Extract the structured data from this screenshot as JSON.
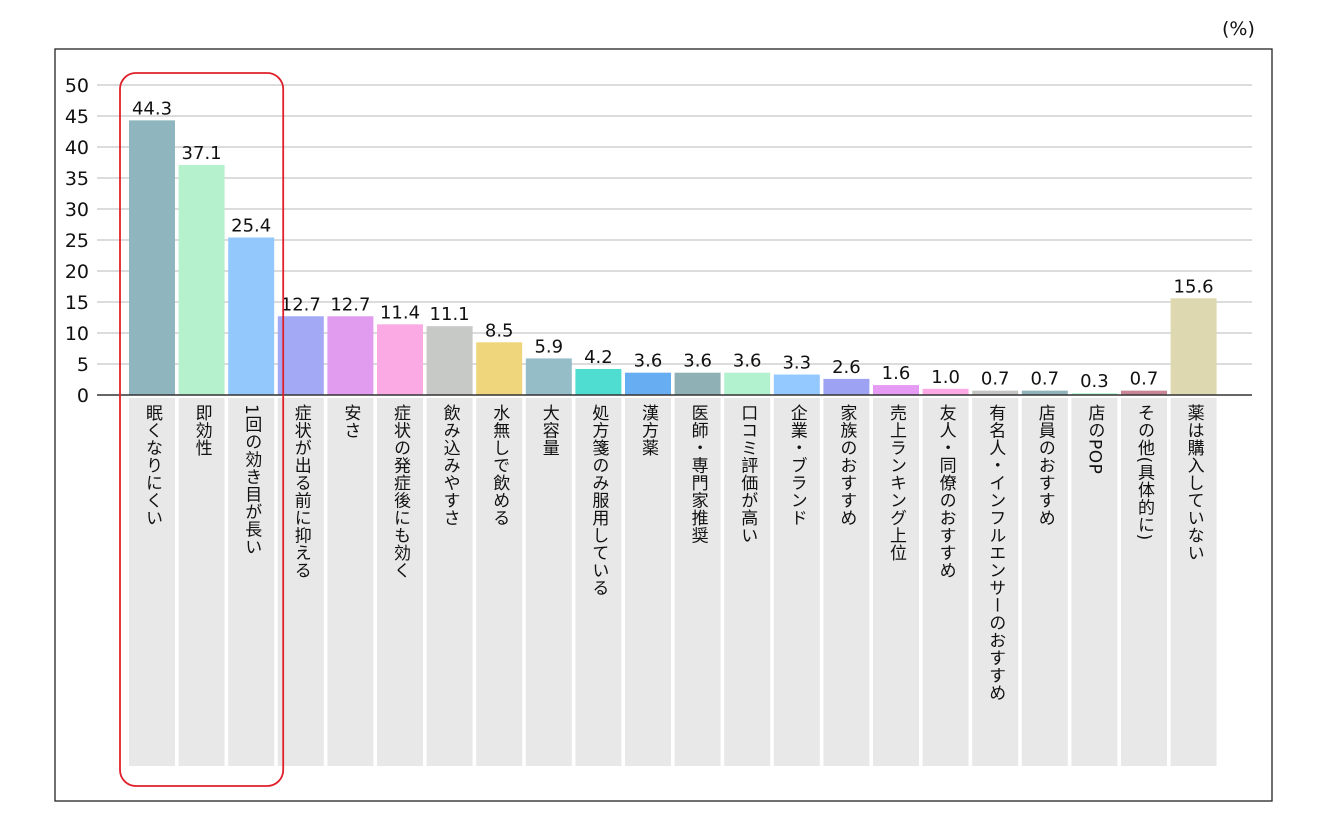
{
  "unit_label": "(%)",
  "chart_data": {
    "type": "bar",
    "title": "",
    "xlabel": "",
    "ylabel": "",
    "ylim": [
      0,
      50
    ],
    "yticks": [
      0,
      5,
      10,
      15,
      20,
      25,
      30,
      35,
      40,
      45,
      50
    ],
    "grid": true,
    "categories": [
      "眠くなりにくい",
      "即効性",
      "1回の効き目が長い",
      "症状が出る前に抑える",
      "安さ",
      "症状の発症後にも効く",
      "飲み込みやすさ",
      "水無しで飲める",
      "大容量",
      "処方箋のみ服用している",
      "漢方薬",
      "医師・専門家推奨",
      "口コミ評価が高い",
      "企業・ブランド",
      "家族のおすすめ",
      "売上ランキング上位",
      "友人・同僚のおすすめ",
      "有名人・インフルエンサーのおすすめ",
      "店員のおすすめ",
      "店のPOP",
      "その他(具体的に)",
      "薬は購入していない"
    ],
    "values": [
      44.3,
      37.1,
      25.4,
      12.7,
      12.7,
      11.4,
      11.1,
      8.5,
      5.9,
      4.2,
      3.6,
      3.6,
      3.6,
      3.3,
      2.6,
      1.6,
      1.0,
      0.7,
      0.7,
      0.3,
      0.7,
      15.6
    ],
    "value_labels": [
      "44.3",
      "37.1",
      "25.4",
      "12.7",
      "12.7",
      "11.4",
      "11.1",
      "8.5",
      "5.9",
      "4.2",
      "3.6",
      "3.6",
      "3.6",
      "3.3",
      "2.6",
      "1.6",
      "1.0",
      "0.7",
      "0.7",
      "0.3",
      "0.7",
      "15.6"
    ],
    "colors": [
      "#8fb6be",
      "#b5f1cd",
      "#93c8fd",
      "#a4a9f6",
      "#e19cef",
      "#fbaae3",
      "#c6c9c5",
      "#efd57b",
      "#94bdc7",
      "#4fddd1",
      "#67adf2",
      "#8fb1b5",
      "#b3f2cf",
      "#93c9fe",
      "#9ea2f2",
      "#e59af3",
      "#faa9e4",
      "#c3c5c3",
      "#8fb3b9",
      "#b6f0ce",
      "#c98595",
      "#ded8b0"
    ],
    "highlight": {
      "categories": [
        "眠くなりにくい",
        "即効性",
        "1回の効き目が長い"
      ],
      "color": "#e0202a"
    }
  }
}
